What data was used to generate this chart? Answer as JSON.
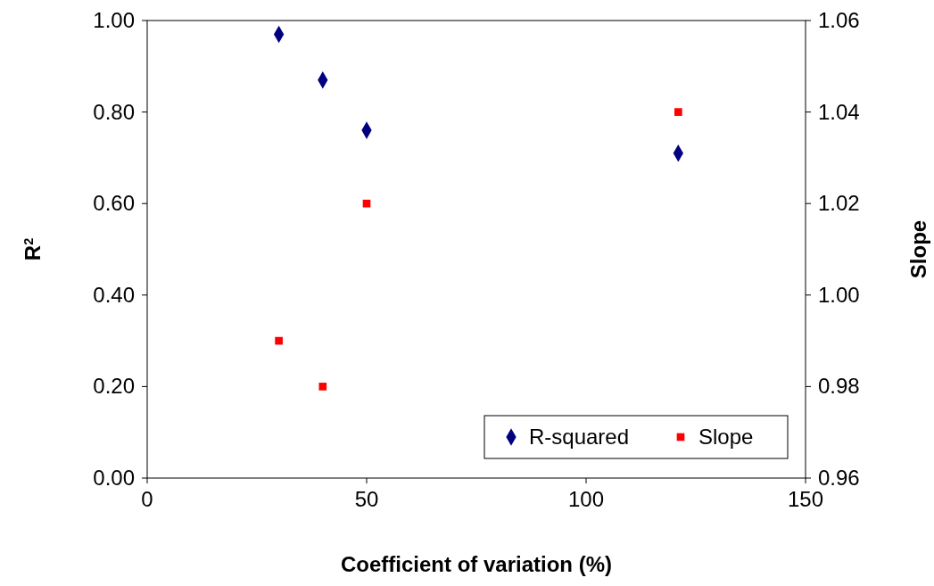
{
  "chart_data": {
    "type": "scatter",
    "xlabel": "Coefficient of variation (%)",
    "ylabel": "R$^{2}$",
    "y2label": "Slope",
    "xlim": [
      0,
      150
    ],
    "xticks": [
      0,
      50,
      100,
      150
    ],
    "ylim": [
      0,
      1
    ],
    "yticks": [
      {
        "value": 0,
        "label": "0.00"
      },
      {
        "value": 0.2,
        "label": "0.20"
      },
      {
        "value": 0.4,
        "label": "0.40"
      },
      {
        "value": 0.6,
        "label": "0.60"
      },
      {
        "value": 0.8,
        "label": "0.80"
      },
      {
        "value": 1,
        "label": "1.00"
      }
    ],
    "y2lim": [
      0.96,
      1.06
    ],
    "y2ticks": [
      {
        "value": 0.96,
        "label": "0.96"
      },
      {
        "value": 0.98,
        "label": "0.98"
      },
      {
        "value": 1,
        "label": "1.00"
      },
      {
        "value": 1.02,
        "label": "1.02"
      },
      {
        "value": 1.04,
        "label": "1.04"
      },
      {
        "value": 1.06,
        "label": "1.06"
      }
    ],
    "legend": "bottom right",
    "grid": false,
    "series": [
      {
        "name": "R-squared",
        "color": "#000080",
        "marker": "diamond",
        "x": [
          30,
          40,
          50,
          121
        ],
        "values": [
          0.97,
          0.87,
          0.76,
          0.71
        ]
      },
      {
        "name": "Slope",
        "color": "#ff0000",
        "marker": "square",
        "axis": "y2",
        "x": [
          30,
          40,
          50,
          121
        ],
        "values": [
          0.99,
          0.98,
          1.02,
          1.04
        ]
      }
    ]
  }
}
